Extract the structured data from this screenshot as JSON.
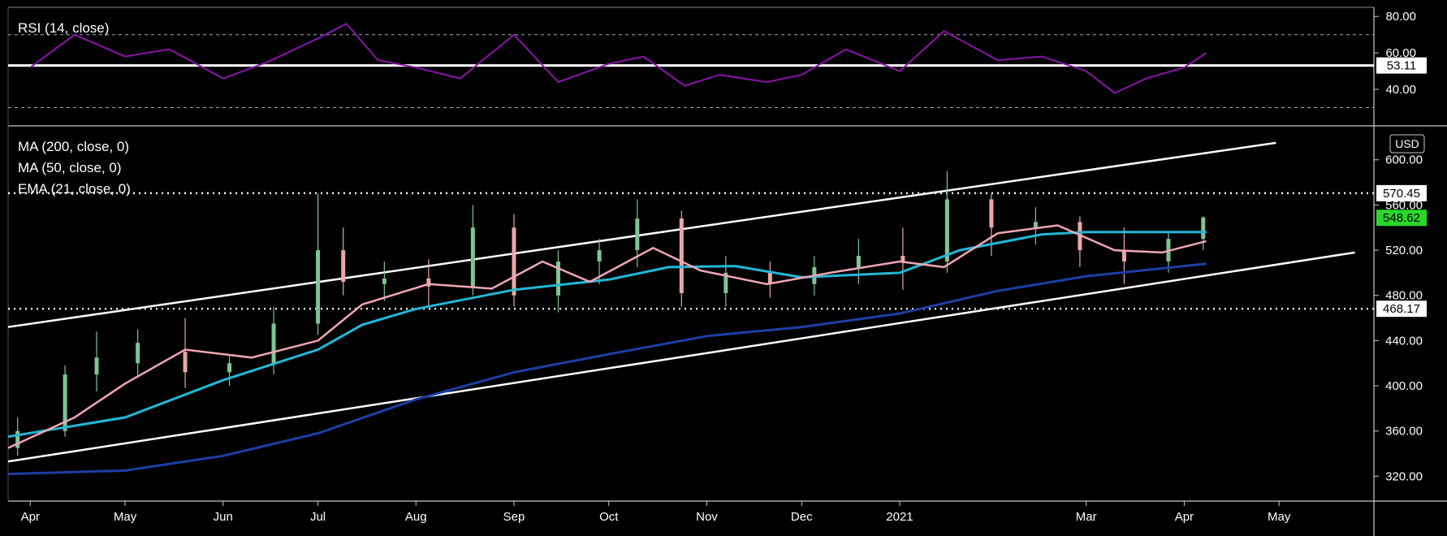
{
  "colors": {
    "background": "#000000",
    "frame": "#c8c8c8",
    "text": "#ffffff",
    "rsi_line": "#8a14a8",
    "rsi_bands": "#aaaaaa",
    "ma200": "#1c3fa6",
    "ma50": "#22b8d8",
    "ema21": "#f0a7b3",
    "candle_up": "#7fc494",
    "candle_down": "#e8a8a6",
    "channel": "#ffffff",
    "last_price_tag": "#2bd62b"
  },
  "rsi": {
    "legend": "RSI (14, close)",
    "axis_ticks": [
      "80.00",
      "60.00",
      "40.00"
    ],
    "bands": [
      70,
      30
    ],
    "current_value": "53.11"
  },
  "price": {
    "currency": "USD",
    "legends": [
      "MA (200, close, 0)",
      "MA (50, close, 0)",
      "EMA (21, close, 0)"
    ],
    "axis_ticks": [
      "600.00",
      "560.00",
      "520.00",
      "480.00",
      "440.00",
      "400.00",
      "360.00",
      "320.00"
    ],
    "resistance_label": "570.45",
    "last_price_label": "548.62",
    "support_label": "468.17"
  },
  "time_axis": {
    "labels": [
      "Apr",
      "May",
      "Jun",
      "Jul",
      "Aug",
      "Sep",
      "Oct",
      "Nov",
      "Dec",
      "2021",
      "Mar",
      "Apr",
      "May"
    ]
  },
  "chart_data": {
    "type": "candlestick",
    "panels": [
      {
        "name": "RSI (14, close)",
        "ylim": [
          20,
          85
        ],
        "reference_lines": [
          70,
          53.11,
          30
        ],
        "series": [
          {
            "name": "RSI (14, close)",
            "x": [
              "2020-04-01",
              "2020-04-15",
              "2020-05-01",
              "2020-05-15",
              "2020-06-01",
              "2020-06-15",
              "2020-07-01",
              "2020-07-10",
              "2020-07-20",
              "2020-08-01",
              "2020-08-15",
              "2020-09-01",
              "2020-09-15",
              "2020-10-01",
              "2020-10-12",
              "2020-10-25",
              "2020-11-05",
              "2020-11-20",
              "2020-12-01",
              "2020-12-15",
              "2021-01-01",
              "2021-01-15",
              "2021-02-01",
              "2021-02-15",
              "2021-03-01",
              "2021-03-10",
              "2021-03-20",
              "2021-04-01",
              "2021-04-08"
            ],
            "y": [
              52,
              70,
              58,
              62,
              46,
              55,
              68,
              76,
              56,
              52,
              46,
              70,
              44,
              54,
              58,
              42,
              48,
              44,
              48,
              62,
              50,
              72,
              56,
              58,
              50,
              38,
              46,
              52,
              60
            ]
          }
        ]
      },
      {
        "name": "Price",
        "ylim": [
          298,
          630
        ],
        "reference_lines": [
          570.45,
          468.17
        ],
        "series": [
          {
            "name": "Price",
            "ohlc_dates": [
              "2020-03-28",
              "2020-04-12",
              "2020-04-22",
              "2020-05-05",
              "2020-05-20",
              "2020-06-03",
              "2020-06-17",
              "2020-07-01",
              "2020-07-09",
              "2020-07-22",
              "2020-08-05",
              "2020-08-19",
              "2020-09-01",
              "2020-09-15",
              "2020-09-28",
              "2020-10-10",
              "2020-10-24",
              "2020-11-07",
              "2020-11-21",
              "2020-12-05",
              "2020-12-19",
              "2021-01-02",
              "2021-01-16",
              "2021-01-30",
              "2021-02-13",
              "2021-02-27",
              "2021-03-13",
              "2021-03-27",
              "2021-04-07"
            ],
            "ohlc": [
              [
                345,
                372,
                338,
                360
              ],
              [
                360,
                418,
                355,
                410
              ],
              [
                410,
                448,
                395,
                425
              ],
              [
                420,
                450,
                408,
                438
              ],
              [
                430,
                460,
                398,
                412
              ],
              [
                412,
                428,
                400,
                420
              ],
              [
                420,
                470,
                410,
                455
              ],
              [
                455,
                570,
                445,
                520
              ],
              [
                520,
                540,
                480,
                492
              ],
              [
                490,
                510,
                475,
                495
              ],
              [
                495,
                512,
                470,
                488
              ],
              [
                488,
                560,
                480,
                540
              ],
              [
                540,
                552,
                470,
                480
              ],
              [
                480,
                520,
                465,
                510
              ],
              [
                510,
                530,
                490,
                520
              ],
              [
                520,
                565,
                505,
                548
              ],
              [
                548,
                555,
                470,
                482
              ],
              [
                482,
                515,
                470,
                500
              ],
              [
                500,
                510,
                478,
                490
              ],
              [
                490,
                515,
                480,
                505
              ],
              [
                505,
                530,
                490,
                515
              ],
              [
                515,
                540,
                485,
                510
              ],
              [
                510,
                590,
                500,
                565
              ],
              [
                565,
                570,
                515,
                540
              ],
              [
                540,
                558,
                525,
                545
              ],
              [
                545,
                550,
                505,
                520
              ],
              [
                520,
                540,
                490,
                510
              ],
              [
                510,
                535,
                500,
                530
              ],
              [
                530,
                550,
                520,
                549
              ]
            ]
          },
          {
            "name": "MA (200, close, 0)",
            "x": [
              "2020-03-25",
              "2020-05-01",
              "2020-06-01",
              "2020-07-01",
              "2020-08-01",
              "2020-09-01",
              "2020-10-01",
              "2020-11-01",
              "2020-12-01",
              "2021-01-01",
              "2021-02-01",
              "2021-03-01",
              "2021-04-08"
            ],
            "y": [
              322,
              325,
              338,
              358,
              388,
              412,
              428,
              444,
              452,
              464,
              484,
              497,
              508
            ]
          },
          {
            "name": "MA (50, close, 0)",
            "x": [
              "2020-03-25",
              "2020-05-01",
              "2020-06-01",
              "2020-07-01",
              "2020-07-15",
              "2020-08-01",
              "2020-09-01",
              "2020-10-01",
              "2020-10-20",
              "2020-11-10",
              "2020-12-01",
              "2021-01-01",
              "2021-01-20",
              "2021-02-15",
              "2021-03-01",
              "2021-04-08"
            ],
            "y": [
              355,
              372,
              405,
              432,
              454,
              468,
              485,
              494,
              505,
              506,
              496,
              500,
              520,
              534,
              536,
              536
            ]
          },
          {
            "name": "EMA (21, close, 0)",
            "x": [
              "2020-03-25",
              "2020-04-15",
              "2020-05-01",
              "2020-05-20",
              "2020-06-10",
              "2020-07-01",
              "2020-07-15",
              "2020-08-05",
              "2020-08-25",
              "2020-09-10",
              "2020-09-25",
              "2020-10-15",
              "2020-10-30",
              "2020-11-20",
              "2020-12-10",
              "2021-01-01",
              "2021-01-15",
              "2021-02-01",
              "2021-02-20",
              "2021-03-10",
              "2021-03-25",
              "2021-04-08"
            ],
            "y": [
              345,
              372,
              402,
              432,
              425,
              440,
              472,
              490,
              486,
              510,
              492,
              522,
              502,
              490,
              500,
              510,
              505,
              535,
              542,
              520,
              518,
              528
            ]
          }
        ],
        "channel": {
          "upper": {
            "x": [
              "2020-03-25",
              "2021-04-30"
            ],
            "y": [
              452,
              615
            ]
          },
          "lower": {
            "x": [
              "2020-03-25",
              "2021-05-25"
            ],
            "y": [
              333,
              518
            ]
          }
        }
      }
    ]
  }
}
